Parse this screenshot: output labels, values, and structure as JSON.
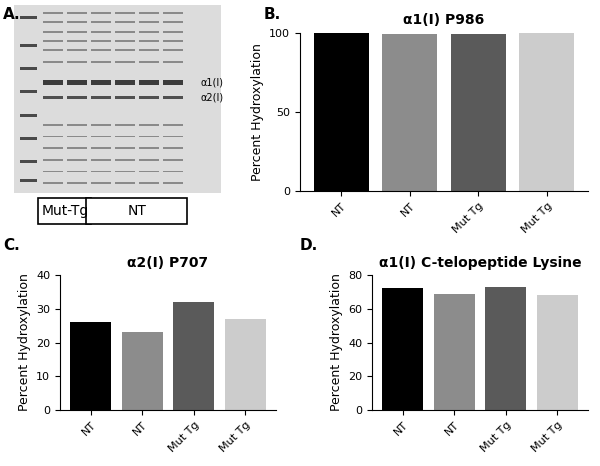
{
  "gel": {
    "panel_label": "A.",
    "bands": [
      "α1(I)",
      "α2(I)"
    ],
    "groups": [
      "Mut-Tg",
      "NT"
    ]
  },
  "chart_data": [
    {
      "type": "bar",
      "panel_label": "B.",
      "title": "α1(I) P986",
      "y_label": "Percent Hydroxylation",
      "categories": [
        "NT",
        "NT",
        "Mut Tg",
        "Mut Tg"
      ],
      "values": [
        100,
        99,
        99,
        100
      ],
      "colors": [
        "#000000",
        "#8c8c8c",
        "#5a5a5a",
        "#cccccc"
      ],
      "ylim": [
        0,
        100
      ],
      "yticks": [
        0,
        50,
        100
      ],
      "grid": false
    },
    {
      "type": "bar",
      "panel_label": "C.",
      "title": "α2(I) P707",
      "y_label": "Percent Hydroxylation",
      "categories": [
        "NT",
        "NT",
        "Mut Tg",
        "Mut Tg"
      ],
      "values": [
        26,
        23,
        32,
        27
      ],
      "colors": [
        "#000000",
        "#8c8c8c",
        "#5a5a5a",
        "#cccccc"
      ],
      "ylim": [
        0,
        40
      ],
      "yticks": [
        0,
        10,
        20,
        30,
        40
      ],
      "grid": false
    },
    {
      "type": "bar",
      "panel_label": "D.",
      "title": "α1(I) C-telopeptide Lysine",
      "y_label": "Percent Hydroxylation",
      "categories": [
        "NT",
        "NT",
        "Mut Tg",
        "Mut Tg"
      ],
      "values": [
        72,
        69,
        73,
        68
      ],
      "colors": [
        "#000000",
        "#8c8c8c",
        "#5a5a5a",
        "#cccccc"
      ],
      "ylim": [
        0,
        80
      ],
      "yticks": [
        0,
        20,
        40,
        60,
        80
      ],
      "grid": false
    }
  ]
}
